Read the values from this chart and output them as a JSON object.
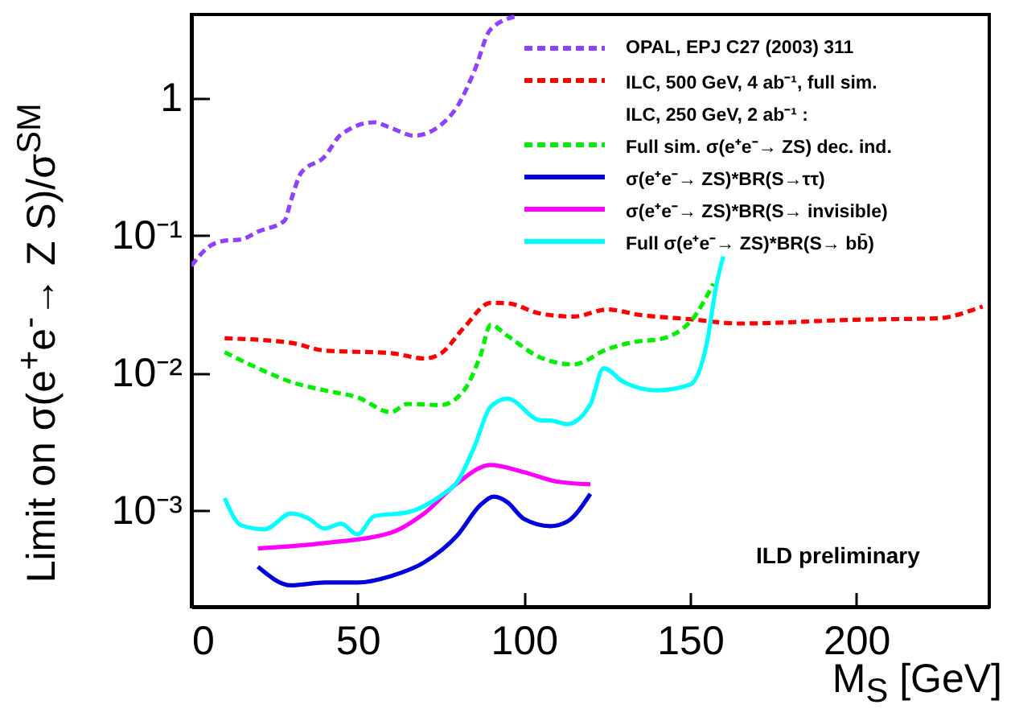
{
  "chart_data": {
    "type": "line",
    "xlabel": "M$_{S}$ [GeV]",
    "ylabel": "Limit on σ(e$^{+}$e$^{-}$→ Z S)/σ$^{SM}$",
    "xlim": [
      0,
      240
    ],
    "xticks": [
      0,
      50,
      100,
      150,
      200
    ],
    "ylim": [
      0.0002,
      4
    ],
    "yticks": [
      {
        "value": 0.001,
        "label": "10⁻³"
      },
      {
        "value": 0.01,
        "label": "10⁻²"
      },
      {
        "value": 0.1,
        "label": "10⁻¹"
      },
      1
    ],
    "log": "y",
    "grid": false,
    "legend": "top right",
    "annotations": [
      "ILC,  250 GeV,  2 ab⁻¹ :",
      "ILD preliminary"
    ],
    "series": [
      {
        "name": "OPAL, EPJ C27 (2003) 311",
        "color": "#9040ff",
        "line_style": "dashed",
        "x": [
          0,
          5,
          10,
          15,
          20,
          28,
          30,
          33,
          40,
          45,
          55,
          60,
          67,
          75,
          80,
          85,
          90,
          98
        ],
        "values": [
          0.0597,
          0.0815,
          0.091,
          0.093,
          0.106,
          0.127,
          0.18,
          0.283,
          0.37,
          0.537,
          0.659,
          0.6,
          0.527,
          0.63,
          0.86,
          1.53,
          3.12,
          3.9
        ]
      },
      {
        "name": "ILC,  500 GeV,  4 ab⁻¹, full sim.",
        "color": "#ff0000",
        "line_style": "dashed",
        "x": [
          10,
          30,
          40,
          60,
          70,
          75,
          82,
          90,
          95,
          105,
          115,
          125,
          135,
          150,
          165,
          200,
          225,
          235,
          238
        ],
        "values": [
          0.0178,
          0.0165,
          0.0145,
          0.0139,
          0.0127,
          0.0138,
          0.0213,
          0.0322,
          0.032,
          0.0269,
          0.0256,
          0.0288,
          0.0263,
          0.0245,
          0.0228,
          0.0243,
          0.0249,
          0.0286,
          0.0303
        ]
      },
      {
        "name": "Full sim.  σ(e⁺e⁻→ ZS)  dec. ind.",
        "color": "#00ee00",
        "line_style": "dashed",
        "x": [
          10,
          20,
          30,
          40,
          50,
          60,
          65,
          75,
          82,
          87,
          90,
          95,
          105,
          115,
          125,
          135,
          140,
          150,
          157
        ],
        "values": [
          0.0141,
          0.0108,
          0.00857,
          0.00746,
          0.00662,
          0.00518,
          0.00594,
          0.00583,
          0.00746,
          0.0135,
          0.0223,
          0.0186,
          0.0129,
          0.0115,
          0.0148,
          0.017,
          0.0174,
          0.0234,
          0.0444
        ]
      },
      {
        "name": "σ(e⁺e⁻→ ZS)*BR(S→ττ)",
        "color": "#0000dd",
        "line_style": "solid",
        "x": [
          20,
          30,
          40,
          50,
          60,
          70,
          80,
          87,
          91,
          95,
          100,
          108,
          113,
          120
        ],
        "values": [
          0.00039,
          0.000286,
          0.0003,
          0.0003,
          0.000334,
          0.00042,
          0.00066,
          0.0011,
          0.00126,
          0.00115,
          0.00087,
          0.00077,
          0.00083,
          0.00132
        ]
      },
      {
        "name": "σ(e⁺e⁻→ ZS)*BR(S→ invisible)",
        "color": "#ff00ff",
        "line_style": "solid",
        "x": [
          20,
          40,
          60,
          70,
          80,
          90,
          100,
          110,
          120
        ],
        "values": [
          0.00053,
          0.00058,
          0.00069,
          0.00095,
          0.00158,
          0.00214,
          0.0019,
          0.00162,
          0.00155
        ]
      },
      {
        "name": "Full  σ(e⁺e⁻→ ZS)*BR(S→ bb̄)",
        "color": "#00ffff",
        "line_style": "solid",
        "x": [
          10,
          15,
          22,
          30,
          35,
          40,
          45,
          50,
          55,
          65,
          75,
          80,
          85,
          90,
          95,
          105,
          108,
          113,
          120,
          124,
          130,
          140,
          150,
          155,
          158,
          160
        ],
        "values": [
          0.00123,
          0.00078,
          0.00073,
          0.00095,
          0.00088,
          0.00074,
          0.0008,
          0.00067,
          0.00091,
          0.00097,
          0.00128,
          0.00162,
          0.00286,
          0.00567,
          0.0065,
          0.00452,
          0.0045,
          0.00424,
          0.0059,
          0.0108,
          0.00857,
          0.00746,
          0.0082,
          0.0162,
          0.0444,
          0.07
        ]
      }
    ]
  }
}
